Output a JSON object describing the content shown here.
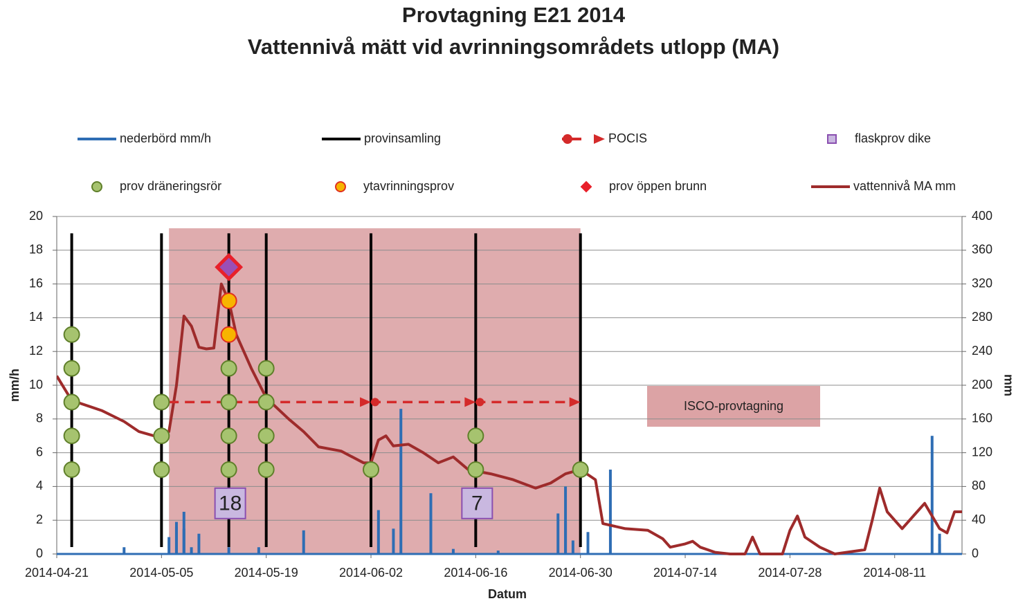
{
  "chart_data": {
    "type": "line",
    "title": "Provtagning E21 2014",
    "subtitle": "Vattennivå mätt vid avrinningsområdets utlopp (MA)",
    "x_label": "Datum",
    "y_label": "mm/h",
    "y2_label": "mm",
    "xlim": [
      "2014-04-21",
      "2014-08-20"
    ],
    "xticks": [
      "2014-04-21",
      "2014-05-05",
      "2014-05-19",
      "2014-06-02",
      "2014-06-16",
      "2014-06-30",
      "2014-07-14",
      "2014-07-28",
      "2014-08-11"
    ],
    "ylim": [
      0,
      20
    ],
    "yticks": [
      0,
      2,
      4,
      6,
      8,
      10,
      12,
      14,
      16,
      18,
      20
    ],
    "y2lim": [
      0,
      400
    ],
    "y2ticks": [
      0,
      40,
      80,
      120,
      160,
      200,
      240,
      280,
      320,
      360,
      400
    ],
    "grid": true,
    "shade": {
      "x": [
        "2014-05-06",
        "2014-06-30"
      ],
      "y": [
        0,
        19.3
      ],
      "color": "#dca3a5"
    },
    "annotation": "ISCO-provtagning",
    "series": [
      {
        "name": "nederbörd mm/h",
        "kind": "spike",
        "color": "#2e6db4",
        "x": [
          "2014-04-30",
          "2014-05-06",
          "2014-05-07",
          "2014-05-07",
          "2014-05-08",
          "2014-05-08",
          "2014-05-09",
          "2014-05-10",
          "2014-05-14",
          "2014-05-18",
          "2014-05-24",
          "2014-06-03",
          "2014-06-05",
          "2014-06-06",
          "2014-06-10",
          "2014-06-13",
          "2014-06-19",
          "2014-06-27",
          "2014-06-28",
          "2014-06-28",
          "2014-06-29",
          "2014-07-01",
          "2014-07-04",
          "2014-08-16",
          "2014-08-17",
          "2014-08-17"
        ],
        "values": [
          0.4,
          1.0,
          1.9,
          1.6,
          1.5,
          2.5,
          0.4,
          1.2,
          0.4,
          0.4,
          1.4,
          2.6,
          1.5,
          8.6,
          3.6,
          0.3,
          0.2,
          2.4,
          4.0,
          1.9,
          0.8,
          1.3,
          5.0,
          7.0,
          1.2,
          0.6
        ]
      },
      {
        "name": "provinsamling",
        "kind": "vline",
        "color": "#000000",
        "x": [
          "2014-04-23",
          "2014-05-05",
          "2014-05-14",
          "2014-05-19",
          "2014-06-02",
          "2014-06-16",
          "2014-06-30"
        ],
        "values": [
          19,
          19,
          19,
          19,
          19,
          19,
          19
        ]
      },
      {
        "name": "POCIS",
        "kind": "arrow",
        "color": "#d42a2a",
        "x": [
          "2014-05-06",
          "2014-06-02",
          "2014-06-16",
          "2014-06-30"
        ],
        "values": [
          9,
          9,
          9,
          9
        ]
      },
      {
        "name": "flaskprov dike",
        "kind": "marker",
        "marker": "square",
        "color": "#c9b8e0",
        "edge": "#8a4fb0",
        "x": [
          "2014-05-14",
          "2014-06-16"
        ],
        "values": [
          3,
          3
        ],
        "labels": [
          "18",
          "7"
        ]
      },
      {
        "name": "prov dräneringsrör",
        "kind": "marker",
        "marker": "circle",
        "color": "#a6c36f",
        "edge": "#5f7f2a",
        "x": [
          "2014-04-23",
          "2014-04-23",
          "2014-04-23",
          "2014-04-23",
          "2014-04-23",
          "2014-05-05",
          "2014-05-05",
          "2014-05-05",
          "2014-05-14",
          "2014-05-14",
          "2014-05-14",
          "2014-05-14",
          "2014-05-19",
          "2014-05-19",
          "2014-05-19",
          "2014-05-19",
          "2014-06-02",
          "2014-06-16",
          "2014-06-16",
          "2014-06-30"
        ],
        "values": [
          5,
          7,
          9,
          11,
          13,
          5,
          7,
          9,
          5,
          7,
          9,
          11,
          5,
          7,
          9,
          11,
          5,
          5,
          7,
          5
        ]
      },
      {
        "name": "ytavrinningsprov",
        "kind": "marker",
        "marker": "circle",
        "color": "#f7b400",
        "edge": "#e03020",
        "x": [
          "2014-05-14",
          "2014-05-14"
        ],
        "values": [
          13,
          15
        ]
      },
      {
        "name": "prov öppen brunn",
        "kind": "marker",
        "marker": "diamond",
        "color": "#e8202a",
        "edge": "#e8202a",
        "x": [
          "2014-05-14"
        ],
        "values": [
          17
        ]
      },
      {
        "name": "vattennivå MA mm",
        "kind": "line",
        "axis": "y2",
        "color": "#9e2b2b",
        "x": [
          "2014-04-21",
          "2014-04-23",
          "2014-04-27",
          "2014-04-30",
          "2014-05-02",
          "2014-05-04",
          "2014-05-06",
          "2014-05-07",
          "2014-05-08",
          "2014-05-09",
          "2014-05-10",
          "2014-05-11",
          "2014-05-12",
          "2014-05-13",
          "2014-05-14",
          "2014-05-15",
          "2014-05-17",
          "2014-05-19",
          "2014-05-22",
          "2014-05-24",
          "2014-05-26",
          "2014-05-29",
          "2014-06-01",
          "2014-06-02",
          "2014-06-03",
          "2014-06-04",
          "2014-06-05",
          "2014-06-07",
          "2014-06-09",
          "2014-06-11",
          "2014-06-13",
          "2014-06-15",
          "2014-06-18",
          "2014-06-21",
          "2014-06-24",
          "2014-06-26",
          "2014-06-28",
          "2014-06-30",
          "2014-07-02",
          "2014-07-03",
          "2014-07-06",
          "2014-07-09",
          "2014-07-11",
          "2014-07-12",
          "2014-07-14",
          "2014-07-15",
          "2014-07-16",
          "2014-07-18",
          "2014-07-20",
          "2014-07-22",
          "2014-07-23",
          "2014-07-24",
          "2014-07-27",
          "2014-07-28",
          "2014-07-29",
          "2014-07-30",
          "2014-08-01",
          "2014-08-03",
          "2014-08-07",
          "2014-08-08",
          "2014-08-09",
          "2014-08-10",
          "2014-08-12",
          "2014-08-14",
          "2014-08-15",
          "2014-08-17",
          "2014-08-18",
          "2014-08-19",
          "2014-08-20"
        ],
        "values": [
          211,
          182,
          170,
          157,
          145,
          140,
          145,
          200,
          282,
          270,
          245,
          243,
          244,
          320,
          300,
          260,
          220,
          185,
          160,
          145,
          127,
          122,
          108,
          108,
          135,
          140,
          128,
          130,
          120,
          108,
          115,
          100,
          95,
          88,
          78,
          84,
          95,
          100,
          88,
          36,
          30,
          28,
          18,
          8,
          12,
          15,
          8,
          2,
          0,
          0,
          20,
          0,
          0,
          28,
          45,
          20,
          8,
          0,
          5,
          40,
          78,
          50,
          30,
          50,
          60,
          30,
          25,
          50,
          50
        ]
      }
    ],
    "legend": [
      0,
      1,
      2,
      3,
      4,
      5,
      6,
      7
    ]
  }
}
